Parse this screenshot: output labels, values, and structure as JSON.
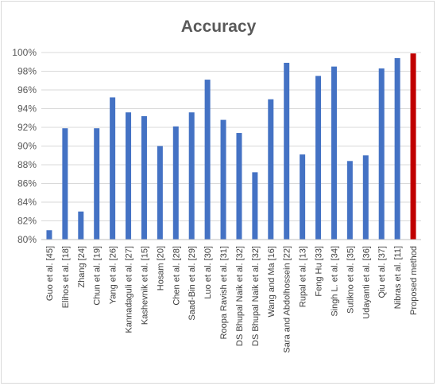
{
  "chart_data": {
    "type": "bar",
    "title": "Accuracy",
    "xlabel": "",
    "ylabel": "",
    "ylim": [
      80,
      100
    ],
    "y_ticks": [
      "80%",
      "82%",
      "84%",
      "86%",
      "88%",
      "90%",
      "92%",
      "94%",
      "96%",
      "98%",
      "100%"
    ],
    "grid": true,
    "legend": "none",
    "categories": [
      "Guo et al. [45]",
      "Elihos et al. [18]",
      "Zhang [24]",
      "Chun et al. [19]",
      "Yang et al. [26]",
      "Kannadaguli et al. [27]",
      "Kashevnik et al. [15]",
      "Hosam [20]",
      "Chen et al. [28]",
      "Saad-Bin et al. [29]",
      "Luo et al. [30]",
      "Roopa Ravish et al. [31]",
      "DS Bhupal Naik et al. [32]",
      "DS Bhupal Naik et al. [32]",
      "Wang and Ma [16]",
      "Sara and Abdolhossein [22]",
      "Rupal et al. [13]",
      "Feng Hu [33]",
      "Singh L. et al. [34]",
      "Sutikno et al. [35]",
      "Udayanti et al. [36]",
      "Qiu et al. [37]",
      "Nibras et al. [11]",
      "Proposed method"
    ],
    "values": [
      81.0,
      91.9,
      83.0,
      91.9,
      95.2,
      93.6,
      93.2,
      90.0,
      92.1,
      93.6,
      97.1,
      92.8,
      91.4,
      87.2,
      95.0,
      98.9,
      89.1,
      97.5,
      98.5,
      88.4,
      89.0,
      98.3,
      99.4,
      99.9
    ],
    "colors": {
      "default_bar": "#4472c4",
      "highlight_bar": "#c00000",
      "gridline": "#d9d9d9",
      "text": "#595959"
    },
    "highlight_index": 23
  }
}
